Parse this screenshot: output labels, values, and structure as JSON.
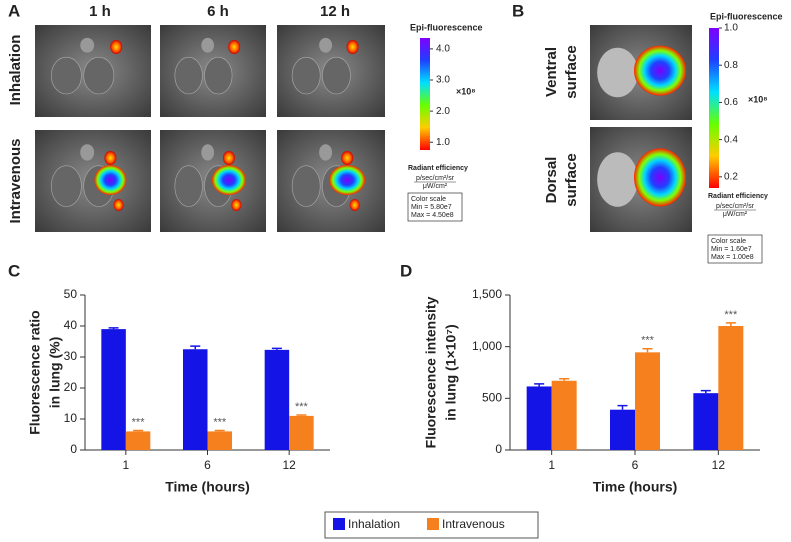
{
  "panels": {
    "a": {
      "letter": "A",
      "times": [
        "1 h",
        "6 h",
        "12 h"
      ],
      "rows": [
        "Inhalation",
        "Intravenous"
      ],
      "colorbar": {
        "title": "Epi-fluorescence",
        "ticks": [
          "4.0",
          "3.0",
          "2.0",
          "1.0"
        ],
        "multiplier": "×10⁸",
        "unit_title": "Radiant efficiency",
        "unit_num": "p/sec/cm²/sr",
        "unit_den": "μW/cm²",
        "scale_title": "Color scale",
        "min": "Min = 5.80e7",
        "max": "Max = 4.50e8"
      }
    },
    "b": {
      "letter": "B",
      "rows": [
        [
          "Ventral",
          "surface"
        ],
        [
          "Dorsal",
          "surface"
        ]
      ],
      "colorbar": {
        "title": "Epi-fluorescence",
        "ticks": [
          "1.0",
          "0.8",
          "0.6",
          "0.4",
          "0.2"
        ],
        "multiplier": "×10⁸",
        "unit_title": "Radiant efficiency",
        "unit_num": "p/sec/cm²/sr",
        "unit_den": "μW/cm²",
        "scale_title": "Color scale",
        "min": "Min = 1.60e7",
        "max": "Max = 1.00e8"
      }
    }
  },
  "chart_data": [
    {
      "type": "bar",
      "letter": "C",
      "ylabel": [
        "Fluorescence ratio",
        "in lung (%)"
      ],
      "xlabel": "Time (hours)",
      "categories": [
        "1",
        "6",
        "12"
      ],
      "series": [
        {
          "name": "Inhalation",
          "color": "#1414e6",
          "values": [
            39,
            32.5,
            32.3
          ],
          "errors": [
            0.4,
            1,
            0.5
          ]
        },
        {
          "name": "Intravenous",
          "color": "#f7801e",
          "values": [
            6,
            6,
            11
          ],
          "errors": [
            0.3,
            0.3,
            0.3
          ]
        }
      ],
      "ylim": [
        0,
        50
      ],
      "yticks": [
        0,
        10,
        20,
        30,
        40,
        50
      ],
      "annotations": [
        {
          "text": "***",
          "category": "1",
          "series": "Intravenous"
        },
        {
          "text": "***",
          "category": "6",
          "series": "Intravenous"
        },
        {
          "text": "***",
          "category": "12",
          "series": "Intravenous"
        }
      ]
    },
    {
      "type": "bar",
      "letter": "D",
      "ylabel": [
        "Fluorescence intensity",
        "in lung (1×10⁷)"
      ],
      "xlabel": "Time (hours)",
      "categories": [
        "1",
        "6",
        "12"
      ],
      "series": [
        {
          "name": "Inhalation",
          "color": "#1414e6",
          "values": [
            615,
            390,
            550
          ],
          "errors": [
            25,
            40,
            25
          ]
        },
        {
          "name": "Intravenous",
          "color": "#f7801e",
          "values": [
            670,
            945,
            1200
          ],
          "errors": [
            20,
            35,
            30
          ]
        }
      ],
      "ylim": [
        0,
        1500
      ],
      "yticks": [
        0,
        500,
        {
          "value": 1000,
          "label": "1,000"
        },
        {
          "value": 1500,
          "label": "1,500"
        }
      ],
      "annotations": [
        {
          "text": "***",
          "category": "6",
          "series": "Intravenous"
        },
        {
          "text": "***",
          "category": "12",
          "series": "Intravenous"
        }
      ]
    }
  ]
}
